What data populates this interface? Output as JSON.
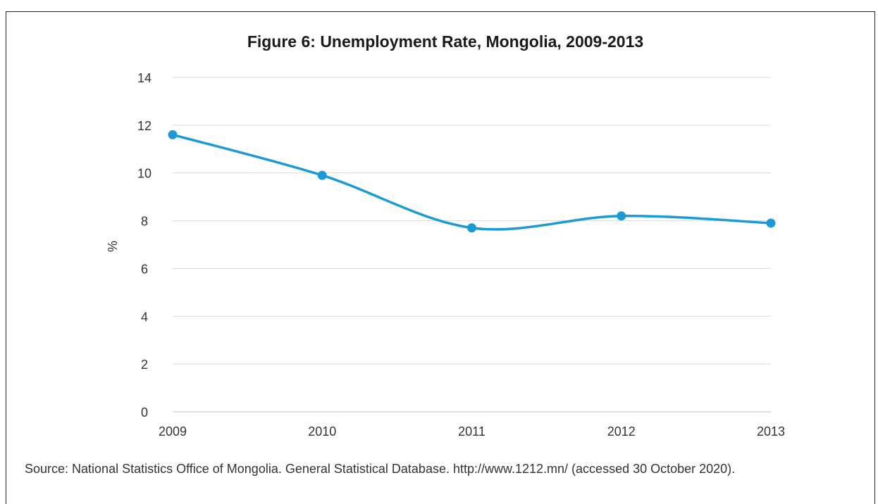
{
  "chart_data": {
    "type": "line",
    "title": "Figure 6: Unemployment Rate, Mongolia, 2009-2013",
    "xlabel": "",
    "ylabel": "%",
    "x": [
      "2009",
      "2010",
      "2011",
      "2012",
      "2013"
    ],
    "y_ticks": [
      "0",
      "2",
      "4",
      "6",
      "8",
      "10",
      "12",
      "14"
    ],
    "ylim": [
      0,
      14
    ],
    "grid": true,
    "smooth": true,
    "series": [
      {
        "values": [
          11.6,
          9.9,
          7.7,
          8.2,
          7.9
        ],
        "color": "#1a9ad6"
      }
    ],
    "source": "Source: National Statistics Office of Mongolia. General Statistical Database. http://www.1212.mn/ (accessed 30 October 2020)."
  }
}
